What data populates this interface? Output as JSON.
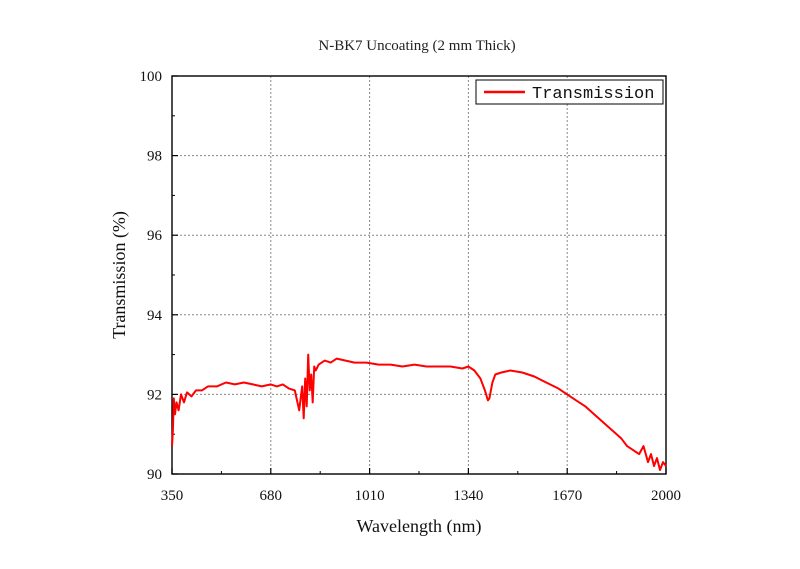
{
  "chart_data": {
    "type": "line",
    "title": "N-BK7 Uncoating (2 mm  Thick)",
    "xlabel": "Wavelength (nm)",
    "ylabel": "Transmission (%)",
    "xlim": [
      350,
      2000
    ],
    "ylim": [
      90,
      100
    ],
    "xticks": [
      350,
      680,
      1010,
      1340,
      1670,
      2000
    ],
    "yticks": [
      90,
      92,
      94,
      96,
      98,
      100
    ],
    "grid": true,
    "legend_position": "top-right",
    "series": [
      {
        "name": "Transmission",
        "color": "#ff0000",
        "x": [
          350,
          353,
          356,
          360,
          365,
          372,
          380,
          390,
          400,
          415,
          430,
          450,
          470,
          500,
          530,
          560,
          590,
          620,
          650,
          680,
          700,
          720,
          740,
          760,
          775,
          785,
          790,
          795,
          800,
          805,
          810,
          815,
          820,
          825,
          830,
          840,
          850,
          860,
          880,
          900,
          930,
          960,
          1000,
          1040,
          1080,
          1120,
          1160,
          1200,
          1240,
          1280,
          1320,
          1340,
          1360,
          1380,
          1395,
          1405,
          1410,
          1420,
          1430,
          1450,
          1480,
          1520,
          1560,
          1600,
          1640,
          1670,
          1700,
          1730,
          1760,
          1790,
          1820,
          1850,
          1870,
          1890,
          1910,
          1925,
          1940,
          1950,
          1960,
          1970,
          1980,
          1990,
          2000
        ],
        "y": [
          90.7,
          91.1,
          91.9,
          91.5,
          91.8,
          91.6,
          92.0,
          91.8,
          92.05,
          91.95,
          92.1,
          92.1,
          92.2,
          92.2,
          92.3,
          92.25,
          92.3,
          92.25,
          92.2,
          92.25,
          92.2,
          92.25,
          92.15,
          92.1,
          91.6,
          92.2,
          91.4,
          92.4,
          91.7,
          93.0,
          92.1,
          92.5,
          91.8,
          92.7,
          92.6,
          92.75,
          92.8,
          92.85,
          92.8,
          92.9,
          92.85,
          92.8,
          92.8,
          92.75,
          92.75,
          92.7,
          92.75,
          92.7,
          92.7,
          92.7,
          92.65,
          92.7,
          92.6,
          92.4,
          92.1,
          91.85,
          91.9,
          92.3,
          92.5,
          92.55,
          92.6,
          92.55,
          92.45,
          92.3,
          92.15,
          92.0,
          91.85,
          91.7,
          91.5,
          91.3,
          91.1,
          90.9,
          90.7,
          90.6,
          90.5,
          90.7,
          90.3,
          90.5,
          90.2,
          90.4,
          90.1,
          90.3,
          90.2
        ]
      }
    ]
  }
}
